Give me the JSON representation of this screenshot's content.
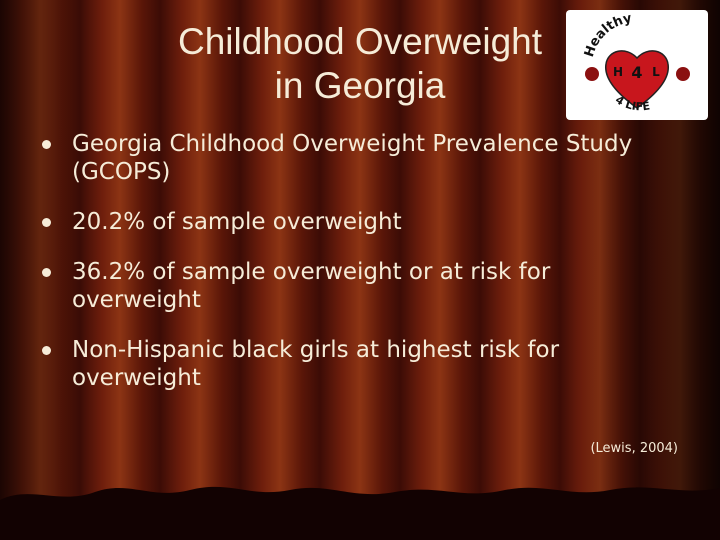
{
  "title": {
    "line1": "Childhood Overweight",
    "line2": "in Georgia"
  },
  "logo": {
    "top": "Healthy",
    "left": "H",
    "center": "4",
    "right": "L",
    "bottom": "4 LIFE"
  },
  "bullets": [
    "Georgia Childhood Overweight Prevalence Study (GCOPS)",
    "20.2% of sample overweight",
    "36.2% of sample overweight or at risk for overweight",
    "Non-Hispanic black girls at highest risk for overweight"
  ],
  "citation": "(Lewis, 2004)"
}
